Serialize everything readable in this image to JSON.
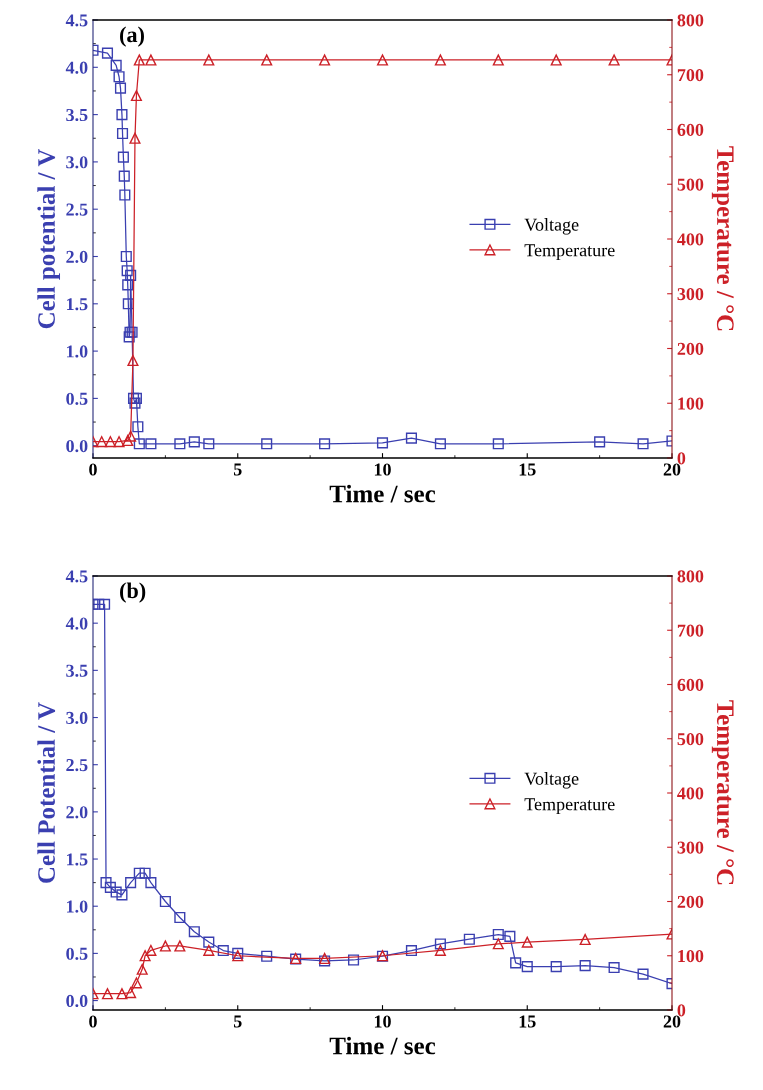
{
  "chart_data": [
    {
      "type": "line",
      "xlabel": "Time / sec",
      "ylabel": "Cell potential / V",
      "y2label": "Temperature / °C",
      "annotations": [
        "(a)"
      ],
      "xlim": [
        0,
        20
      ],
      "xticks": [
        0,
        5,
        10,
        15,
        20
      ],
      "ylim": [
        -0.13,
        4.5
      ],
      "yticks": [
        {
          "value": 0,
          "label": "0.0"
        },
        {
          "value": 0.5,
          "label": "0.5"
        },
        {
          "value": 1,
          "label": "1.0"
        },
        {
          "value": 1.5,
          "label": "1.5"
        },
        {
          "value": 2,
          "label": "2.0"
        },
        {
          "value": 2.5,
          "label": "2.5"
        },
        {
          "value": 3,
          "label": "3.0"
        },
        {
          "value": 3.5,
          "label": "3.5"
        },
        {
          "value": 4,
          "label": "4.0"
        },
        {
          "value": 4.5,
          "label": "4.5"
        }
      ],
      "y2lim": [
        0,
        800
      ],
      "y2ticks": [
        0,
        100,
        200,
        300,
        400,
        500,
        600,
        700,
        800
      ],
      "legend": "right",
      "grid": false,
      "series": [
        {
          "name": "Voltage",
          "color": "#3a3fb0",
          "marker": "square",
          "x": [
            0,
            0.5,
            0.8,
            0.9,
            0.95,
            1.0,
            1.02,
            1.05,
            1.08,
            1.1,
            1.15,
            1.18,
            1.2,
            1.22,
            1.25,
            1.28,
            1.3,
            1.35,
            1.4,
            1.45,
            1.5,
            1.55,
            1.6,
            2,
            3,
            3.5,
            4,
            6,
            8,
            10,
            11,
            12,
            14,
            17.5,
            19,
            20
          ],
          "values": [
            4.18,
            4.15,
            4.02,
            3.9,
            3.78,
            3.5,
            3.3,
            3.05,
            2.85,
            2.65,
            2.0,
            1.85,
            1.7,
            1.5,
            1.15,
            1.2,
            1.8,
            1.2,
            0.5,
            0.45,
            0.5,
            0.2,
            0.02,
            0.02,
            0.02,
            0.04,
            0.02,
            0.02,
            0.02,
            0.03,
            0.08,
            0.02,
            0.02,
            0.04,
            0.02,
            0.05
          ]
        },
        {
          "name": "Temperature",
          "color": "#cc2027",
          "marker": "triangle",
          "axis": "y2",
          "x": [
            0,
            0.3,
            0.6,
            0.9,
            1.2,
            1.3,
            1.38,
            1.45,
            1.5,
            1.6,
            2,
            4,
            6,
            8,
            10,
            12,
            14,
            16,
            18,
            20
          ],
          "values": [
            30,
            30,
            30,
            30,
            32,
            40,
            178,
            584,
            662,
            727,
            727,
            727,
            727,
            727,
            727,
            727,
            727,
            727,
            727,
            727
          ]
        }
      ]
    },
    {
      "type": "line",
      "xlabel": "Time / sec",
      "ylabel": "Cell Potential / V",
      "y2label": "Temperature / °C",
      "annotations": [
        "(b)"
      ],
      "xlim": [
        0,
        20
      ],
      "xticks": [
        0,
        5,
        10,
        15,
        20
      ],
      "ylim": [
        -0.1,
        4.5
      ],
      "yticks": [
        {
          "value": 0,
          "label": "0.0"
        },
        {
          "value": 0.5,
          "label": "0.5"
        },
        {
          "value": 1,
          "label": "1.0"
        },
        {
          "value": 1.5,
          "label": "1.5"
        },
        {
          "value": 2,
          "label": "2.0"
        },
        {
          "value": 2.5,
          "label": "2.5"
        },
        {
          "value": 3,
          "label": "3.0"
        },
        {
          "value": 3.5,
          "label": "3.5"
        },
        {
          "value": 4,
          "label": "4.0"
        },
        {
          "value": 4.5,
          "label": "4.5"
        }
      ],
      "y2lim": [
        0,
        800
      ],
      "y2ticks": [
        0,
        100,
        200,
        300,
        400,
        500,
        600,
        700,
        800
      ],
      "legend": "right",
      "grid": false,
      "series": [
        {
          "name": "Voltage",
          "color": "#3a3fb0",
          "marker": "square",
          "x": [
            0,
            0.2,
            0.4,
            0.45,
            0.6,
            0.8,
            1.0,
            1.3,
            1.6,
            1.8,
            2.0,
            2.5,
            3.0,
            3.5,
            4.0,
            4.5,
            5,
            6,
            7,
            8,
            9,
            10,
            11,
            12,
            13,
            14,
            14.4,
            14.6,
            15,
            16,
            17,
            18,
            19,
            20
          ],
          "values": [
            4.2,
            4.2,
            4.2,
            1.25,
            1.2,
            1.15,
            1.12,
            1.25,
            1.35,
            1.35,
            1.25,
            1.05,
            0.88,
            0.73,
            0.62,
            0.53,
            0.5,
            0.47,
            0.44,
            0.42,
            0.43,
            0.47,
            0.53,
            0.6,
            0.65,
            0.7,
            0.68,
            0.4,
            0.36,
            0.36,
            0.37,
            0.35,
            0.28,
            0.18
          ]
        },
        {
          "name": "Temperature",
          "color": "#cc2027",
          "marker": "triangle",
          "axis": "y2",
          "x": [
            0,
            0.5,
            1.0,
            1.3,
            1.5,
            1.7,
            1.8,
            2.0,
            2.5,
            3,
            4,
            5,
            7,
            8,
            10,
            12,
            14,
            15,
            17,
            20
          ],
          "values": [
            30,
            30,
            30,
            32,
            50,
            75,
            100,
            110,
            118,
            118,
            110,
            100,
            95,
            95,
            100,
            110,
            122,
            125,
            130,
            140
          ]
        }
      ]
    }
  ]
}
